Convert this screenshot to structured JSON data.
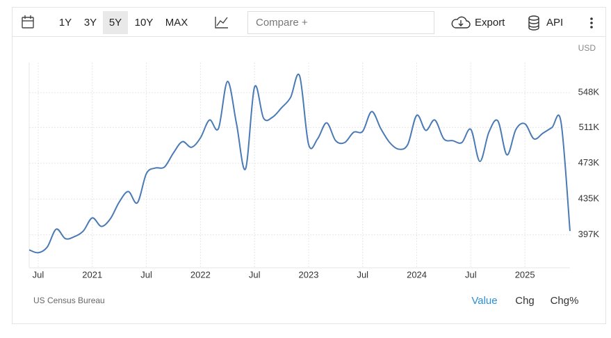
{
  "toolbar": {
    "ranges": [
      "1Y",
      "3Y",
      "5Y",
      "10Y",
      "MAX"
    ],
    "selected": 2,
    "compare": "Compare +",
    "export": "Export",
    "api": "API"
  },
  "chart_data": {
    "type": "line",
    "unit_label": "USD",
    "color": "#4a7ab5",
    "grid": true,
    "x": [
      "2020-06",
      "2020-07",
      "2020-08",
      "2020-09",
      "2020-10",
      "2020-11",
      "2020-12",
      "2021-01",
      "2021-02",
      "2021-03",
      "2021-04",
      "2021-05",
      "2021-06",
      "2021-07",
      "2021-08",
      "2021-09",
      "2021-10",
      "2021-11",
      "2021-12",
      "2022-01",
      "2022-02",
      "2022-03",
      "2022-04",
      "2022-05",
      "2022-06",
      "2022-07",
      "2022-08",
      "2022-09",
      "2022-10",
      "2022-11",
      "2022-12",
      "2023-01",
      "2023-02",
      "2023-03",
      "2023-04",
      "2023-05",
      "2023-06",
      "2023-07",
      "2023-08",
      "2023-09",
      "2023-10",
      "2023-11",
      "2023-12",
      "2024-01",
      "2024-02",
      "2024-03",
      "2024-04",
      "2024-05",
      "2024-06",
      "2024-07",
      "2024-08",
      "2024-09",
      "2024-10",
      "2024-11",
      "2024-12",
      "2025-01",
      "2025-02",
      "2025-03",
      "2025-04",
      "2025-05",
      "2025-06"
    ],
    "values": [
      381000,
      378000,
      384000,
      403000,
      393000,
      395000,
      401000,
      415000,
      406000,
      414000,
      432000,
      443000,
      431000,
      462000,
      468000,
      469000,
      484000,
      496000,
      490000,
      500000,
      519000,
      510000,
      560000,
      515000,
      467000,
      554000,
      521000,
      522000,
      532000,
      543000,
      566000,
      493000,
      499000,
      516000,
      497000,
      495000,
      506000,
      507000,
      528000,
      510000,
      495000,
      488000,
      493000,
      524000,
      508000,
      519000,
      499000,
      497000,
      495000,
      509000,
      475000,
      506000,
      518000,
      482000,
      509000,
      515000,
      499000,
      505000,
      511000,
      517000,
      401000
    ],
    "xlim": [
      "2020-06",
      "2025-06"
    ],
    "xticks": [
      {
        "value": "2020-07",
        "label": "Jul"
      },
      {
        "value": "2021-01",
        "label": "2021"
      },
      {
        "value": "2021-07",
        "label": "Jul"
      },
      {
        "value": "2022-01",
        "label": "2022"
      },
      {
        "value": "2022-07",
        "label": "Jul"
      },
      {
        "value": "2023-01",
        "label": "2023"
      },
      {
        "value": "2023-07",
        "label": "Jul"
      },
      {
        "value": "2024-01",
        "label": "2024"
      },
      {
        "value": "2024-07",
        "label": "Jul"
      },
      {
        "value": "2025-01",
        "label": "2025"
      }
    ],
    "ylim": [
      362000,
      580000
    ],
    "yticks": [
      {
        "value": 397000,
        "label": "397K"
      },
      {
        "value": 435000,
        "label": "435K"
      },
      {
        "value": 473000,
        "label": "473K"
      },
      {
        "value": 511000,
        "label": "511K"
      },
      {
        "value": 548000,
        "label": "548K"
      }
    ],
    "source": "US Census Bureau"
  },
  "footer": {
    "tabs": [
      "Value",
      "Chg",
      "Chg%"
    ],
    "selected": 0
  }
}
